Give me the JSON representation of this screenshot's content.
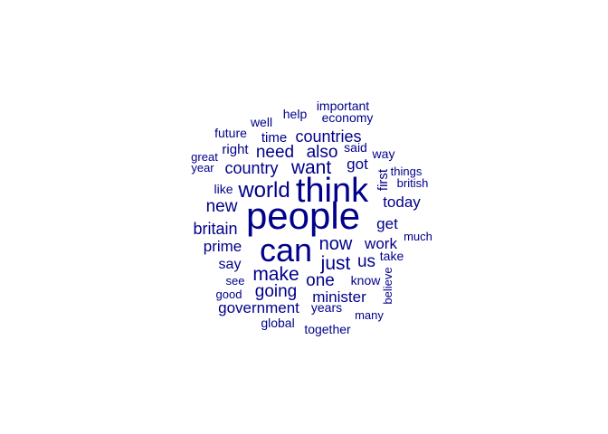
{
  "word_color": "#00008B",
  "background_color": "#FFFFFF",
  "words": [
    {
      "text": "people"
    },
    {
      "text": "think"
    },
    {
      "text": "can"
    },
    {
      "text": "world"
    },
    {
      "text": "want"
    },
    {
      "text": "make"
    },
    {
      "text": "just"
    },
    {
      "text": "now"
    },
    {
      "text": "need"
    },
    {
      "text": "also"
    },
    {
      "text": "countries"
    },
    {
      "text": "country"
    },
    {
      "text": "new"
    },
    {
      "text": "britain"
    },
    {
      "text": "going"
    },
    {
      "text": "one"
    },
    {
      "text": "us"
    },
    {
      "text": "work"
    },
    {
      "text": "got"
    },
    {
      "text": "get"
    },
    {
      "text": "today"
    },
    {
      "text": "prime"
    },
    {
      "text": "minister"
    },
    {
      "text": "government"
    },
    {
      "text": "say"
    },
    {
      "text": "time"
    },
    {
      "text": "right"
    },
    {
      "text": "first"
    },
    {
      "text": "know"
    },
    {
      "text": "take"
    },
    {
      "text": "like"
    },
    {
      "text": "said"
    },
    {
      "text": "way"
    },
    {
      "text": "see"
    },
    {
      "text": "good"
    },
    {
      "text": "years"
    },
    {
      "text": "well"
    },
    {
      "text": "help"
    },
    {
      "text": "important"
    },
    {
      "text": "economy"
    },
    {
      "text": "future"
    },
    {
      "text": "great"
    },
    {
      "text": "year"
    },
    {
      "text": "things"
    },
    {
      "text": "british"
    },
    {
      "text": "much"
    },
    {
      "text": "believe"
    },
    {
      "text": "many"
    },
    {
      "text": "global"
    },
    {
      "text": "together"
    }
  ]
}
